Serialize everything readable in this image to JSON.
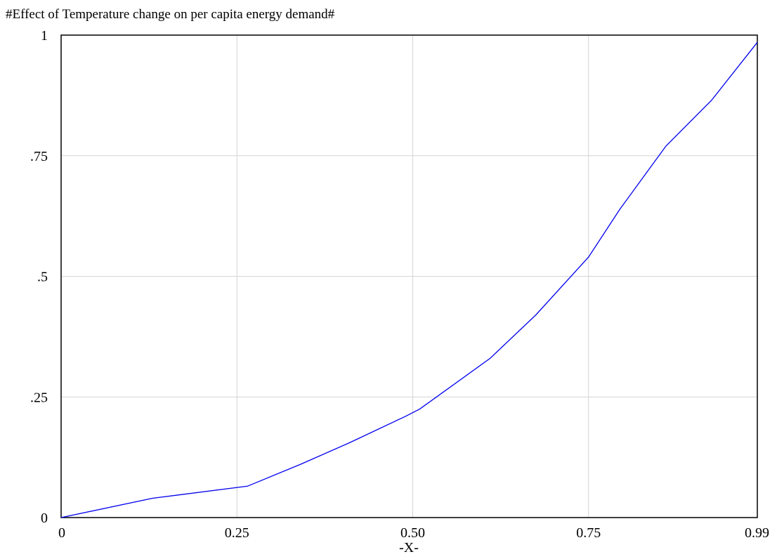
{
  "chart_data": {
    "type": "line",
    "title": "#Effect of Temperature change on per capita energy demand#",
    "xlabel": "-X-",
    "ylabel": "",
    "xlim": [
      0,
      0.99
    ],
    "ylim": [
      0,
      1
    ],
    "x_ticks": [
      {
        "value": 0,
        "label": "0"
      },
      {
        "value": 0.25,
        "label": "0.25"
      },
      {
        "value": 0.5,
        "label": "0.50"
      },
      {
        "value": 0.75,
        "label": "0.75"
      },
      {
        "value": 0.99,
        "label": "0.99"
      }
    ],
    "y_ticks": [
      {
        "value": 0,
        "label": "0"
      },
      {
        "value": 0.25,
        "label": ".25"
      },
      {
        "value": 0.5,
        "label": ".5"
      },
      {
        "value": 0.75,
        "label": ".75"
      },
      {
        "value": 1,
        "label": "1"
      }
    ],
    "grid": true,
    "series": [
      {
        "color": "#0000ee",
        "x": [
          0,
          0.13,
          0.265,
          0.34,
          0.41,
          0.49,
          0.51,
          0.61,
          0.675,
          0.75,
          0.795,
          0.86,
          0.925,
          0.99
        ],
        "y": [
          0,
          0.04,
          0.065,
          0.11,
          0.155,
          0.21,
          0.225,
          0.33,
          0.42,
          0.54,
          0.64,
          0.77,
          0.865,
          0.985
        ]
      }
    ]
  }
}
